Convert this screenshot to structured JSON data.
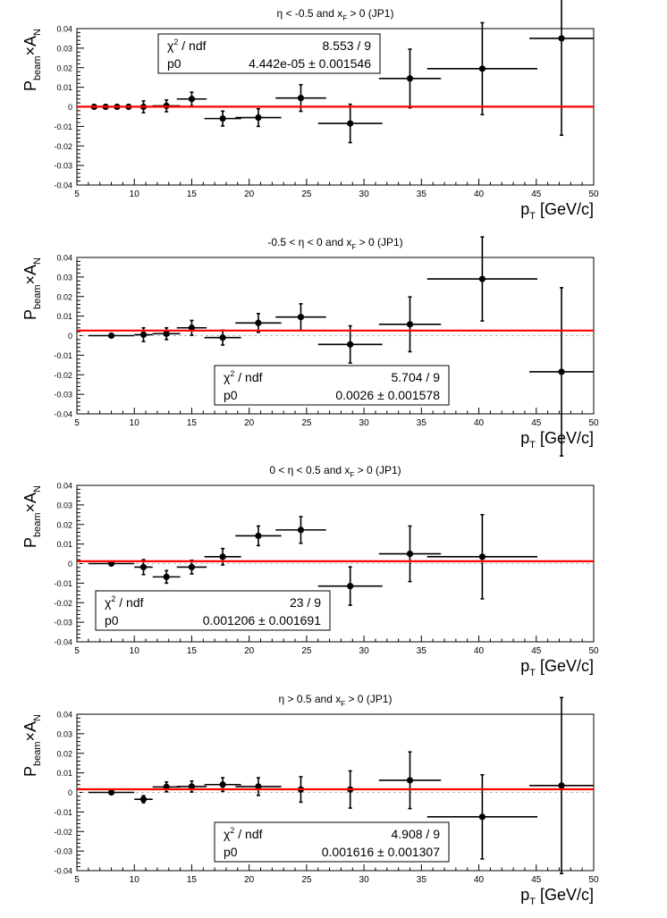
{
  "chart_data": [
    {
      "type": "scatter",
      "title_parts": {
        "pre": "η < -0.5 and x",
        "sub": "F",
        "post": " > 0 (JP1)"
      },
      "xlabel_parts": {
        "base": "p",
        "sub": "T",
        "post": " [GeV/c]"
      },
      "ylabel_parts": {
        "base": "P",
        "sub1": "beam",
        "mid": "×A",
        "sub2": "N"
      },
      "xlim": [
        5,
        50
      ],
      "ylim": [
        -0.04,
        0.04
      ],
      "x_ticks": [
        "5",
        "10",
        "15",
        "20",
        "25",
        "30",
        "35",
        "40",
        "45",
        "50"
      ],
      "y_ticks": [
        "-0.04",
        "-0.03",
        "-0.02",
        "-0.01",
        "0",
        "0.01",
        "0.02",
        "0.03",
        "0.04"
      ],
      "points": [
        {
          "x": 6.5,
          "xerr": 0.5,
          "y": 0.0,
          "yerr": 0.0
        },
        {
          "x": 7.5,
          "xerr": 0.5,
          "y": 0.0,
          "yerr": 0.0
        },
        {
          "x": 8.5,
          "xerr": 0.5,
          "y": 0.0,
          "yerr": 0.0
        },
        {
          "x": 9.5,
          "xerr": 0.5,
          "y": 0.0,
          "yerr": 0.0
        },
        {
          "x": 10.8,
          "xerr": 0.8,
          "y": 0.0,
          "yerr": 0.003
        },
        {
          "x": 12.8,
          "xerr": 1.2,
          "y": 0.0005,
          "yerr": 0.003
        },
        {
          "x": 15.0,
          "xerr": 1.3,
          "y": 0.004,
          "yerr": 0.0035
        },
        {
          "x": 17.7,
          "xerr": 1.6,
          "y": -0.006,
          "yerr": 0.0038
        },
        {
          "x": 20.8,
          "xerr": 2.0,
          "y": -0.0055,
          "yerr": 0.0045
        },
        {
          "x": 24.5,
          "xerr": 2.2,
          "y": 0.0045,
          "yerr": 0.0068
        },
        {
          "x": 28.8,
          "xerr": 2.8,
          "y": -0.0085,
          "yerr": 0.0098
        },
        {
          "x": 34.0,
          "xerr": 2.7,
          "y": 0.0145,
          "yerr": 0.015
        },
        {
          "x": 40.3,
          "xerr": 4.8,
          "y": 0.0195,
          "yerr": 0.0235
        },
        {
          "x": 47.2,
          "xerr": 2.8,
          "y": 0.035,
          "yerr": 0.0495
        }
      ],
      "fit_value": 4.44e-05,
      "stats_box": {
        "chi2_label_parts": {
          "chi": "χ",
          "sup": "2",
          "post": " / ndf"
        },
        "chi2_value": "8.553 / 9",
        "p0_label": "p0",
        "p0_value": "4.442e-05 ± 0.001546",
        "position": "top-left"
      }
    },
    {
      "type": "scatter",
      "title_parts": {
        "pre": "-0.5 < η < 0 and x",
        "sub": "F",
        "post": " > 0 (JP1)"
      },
      "xlabel_parts": {
        "base": "p",
        "sub": "T",
        "post": " [GeV/c]"
      },
      "ylabel_parts": {
        "base": "P",
        "sub1": "beam",
        "mid": "×A",
        "sub2": "N"
      },
      "xlim": [
        5,
        50
      ],
      "ylim": [
        -0.04,
        0.04
      ],
      "x_ticks": [
        "5",
        "10",
        "15",
        "20",
        "25",
        "30",
        "35",
        "40",
        "45",
        "50"
      ],
      "y_ticks": [
        "-0.04",
        "-0.03",
        "-0.02",
        "-0.01",
        "0",
        "0.01",
        "0.02",
        "0.03",
        "0.04"
      ],
      "points": [
        {
          "x": 8.0,
          "xerr": 2.0,
          "y": 0.0,
          "yerr": 0.0
        },
        {
          "x": 10.8,
          "xerr": 0.8,
          "y": 0.0005,
          "yerr": 0.0035
        },
        {
          "x": 12.8,
          "xerr": 1.2,
          "y": 0.001,
          "yerr": 0.003
        },
        {
          "x": 15.0,
          "xerr": 1.3,
          "y": 0.004,
          "yerr": 0.0038
        },
        {
          "x": 17.7,
          "xerr": 1.6,
          "y": -0.001,
          "yerr": 0.0038
        },
        {
          "x": 20.8,
          "xerr": 2.0,
          "y": 0.0065,
          "yerr": 0.0048
        },
        {
          "x": 24.5,
          "xerr": 2.2,
          "y": 0.0095,
          "yerr": 0.0068
        },
        {
          "x": 28.8,
          "xerr": 2.8,
          "y": -0.0045,
          "yerr": 0.0095
        },
        {
          "x": 34.0,
          "xerr": 2.7,
          "y": 0.0058,
          "yerr": 0.014
        },
        {
          "x": 40.3,
          "xerr": 4.8,
          "y": 0.029,
          "yerr": 0.0215
        },
        {
          "x": 47.2,
          "xerr": 2.8,
          "y": -0.0185,
          "yerr": 0.043
        }
      ],
      "fit_value": 0.0026,
      "stats_box": {
        "chi2_label_parts": {
          "chi": "χ",
          "sup": "2",
          "post": " / ndf"
        },
        "chi2_value": "5.704 / 9",
        "p0_label": "p0",
        "p0_value": "0.0026 ± 0.001578",
        "position": "bottom-center"
      }
    },
    {
      "type": "scatter",
      "title_parts": {
        "pre": "0 < η < 0.5 and x",
        "sub": "F",
        "post": " > 0 (JP1)"
      },
      "xlabel_parts": {
        "base": "p",
        "sub": "T",
        "post": " [GeV/c]"
      },
      "ylabel_parts": {
        "base": "P",
        "sub1": "beam",
        "mid": "×A",
        "sub2": "N"
      },
      "xlim": [
        5,
        50
      ],
      "ylim": [
        -0.04,
        0.04
      ],
      "x_ticks": [
        "5",
        "10",
        "15",
        "20",
        "25",
        "30",
        "35",
        "40",
        "45",
        "50"
      ],
      "y_ticks": [
        "-0.04",
        "-0.03",
        "-0.02",
        "-0.01",
        "0",
        "0.01",
        "0.02",
        "0.03",
        "0.04"
      ],
      "points": [
        {
          "x": 8.0,
          "xerr": 2.0,
          "y": 0.0,
          "yerr": 0.0
        },
        {
          "x": 10.8,
          "xerr": 0.8,
          "y": -0.0018,
          "yerr": 0.0038
        },
        {
          "x": 12.8,
          "xerr": 1.2,
          "y": -0.0068,
          "yerr": 0.0032
        },
        {
          "x": 15.0,
          "xerr": 1.3,
          "y": -0.0018,
          "yerr": 0.0035
        },
        {
          "x": 17.7,
          "xerr": 1.6,
          "y": 0.0035,
          "yerr": 0.0042
        },
        {
          "x": 20.8,
          "xerr": 2.0,
          "y": 0.0142,
          "yerr": 0.005
        },
        {
          "x": 24.5,
          "xerr": 2.2,
          "y": 0.0172,
          "yerr": 0.0068
        },
        {
          "x": 28.8,
          "xerr": 2.8,
          "y": -0.0115,
          "yerr": 0.0098
        },
        {
          "x": 34.0,
          "xerr": 2.7,
          "y": 0.005,
          "yerr": 0.0142
        },
        {
          "x": 40.3,
          "xerr": 4.8,
          "y": 0.0035,
          "yerr": 0.0215
        }
      ],
      "fit_value": 0.001206,
      "stats_box": {
        "chi2_label_parts": {
          "chi": "χ",
          "sup": "2",
          "post": " / ndf"
        },
        "chi2_value": "23 / 9",
        "p0_label": "p0",
        "p0_value": "0.001206 ± 0.001691",
        "position": "bottom-left"
      }
    },
    {
      "type": "scatter",
      "title_parts": {
        "pre": "η > 0.5 and x",
        "sub": "F",
        "post": " > 0 (JP1)"
      },
      "xlabel_parts": {
        "base": "p",
        "sub": "T",
        "post": " [GeV/c]"
      },
      "ylabel_parts": {
        "base": "P",
        "sub1": "beam",
        "mid": "×A",
        "sub2": "N"
      },
      "xlim": [
        5,
        50
      ],
      "ylim": [
        -0.04,
        0.04
      ],
      "x_ticks": [
        "5",
        "10",
        "15",
        "20",
        "25",
        "30",
        "35",
        "40",
        "45",
        "50"
      ],
      "y_ticks": [
        "-0.04",
        "-0.03",
        "-0.02",
        "-0.01",
        "0",
        "0.01",
        "0.02",
        "0.03",
        "0.04"
      ],
      "points": [
        {
          "x": 8.0,
          "xerr": 2.0,
          "y": 0.0,
          "yerr": 0.0
        },
        {
          "x": 10.8,
          "xerr": 0.8,
          "y": -0.0035,
          "yerr": 0.0018
        },
        {
          "x": 12.8,
          "xerr": 1.2,
          "y": 0.0028,
          "yerr": 0.0025
        },
        {
          "x": 15.0,
          "xerr": 1.3,
          "y": 0.003,
          "yerr": 0.0028
        },
        {
          "x": 17.7,
          "xerr": 1.6,
          "y": 0.004,
          "yerr": 0.0035
        },
        {
          "x": 20.8,
          "xerr": 2.0,
          "y": 0.003,
          "yerr": 0.0045
        },
        {
          "x": 24.5,
          "xerr": 2.2,
          "y": 0.0015,
          "yerr": 0.0065
        },
        {
          "x": 28.8,
          "xerr": 2.8,
          "y": 0.0015,
          "yerr": 0.0095
        },
        {
          "x": 34.0,
          "xerr": 2.7,
          "y": 0.0062,
          "yerr": 0.0145
        },
        {
          "x": 40.3,
          "xerr": 4.8,
          "y": -0.0125,
          "yerr": 0.0215
        },
        {
          "x": 47.2,
          "xerr": 2.8,
          "y": 0.0035,
          "yerr": 0.045
        }
      ],
      "fit_value": 0.001616,
      "stats_box": {
        "chi2_label_parts": {
          "chi": "χ",
          "sup": "2",
          "post": " / ndf"
        },
        "chi2_value": "4.908 / 9",
        "p0_label": "p0",
        "p0_value": "0.001616 ± 0.001307",
        "position": "bottom-center"
      }
    }
  ],
  "colors": {
    "fit_line": "#ff0000",
    "points": "#000000",
    "zero_line": "#bbbbbb",
    "frame": "#000000"
  }
}
